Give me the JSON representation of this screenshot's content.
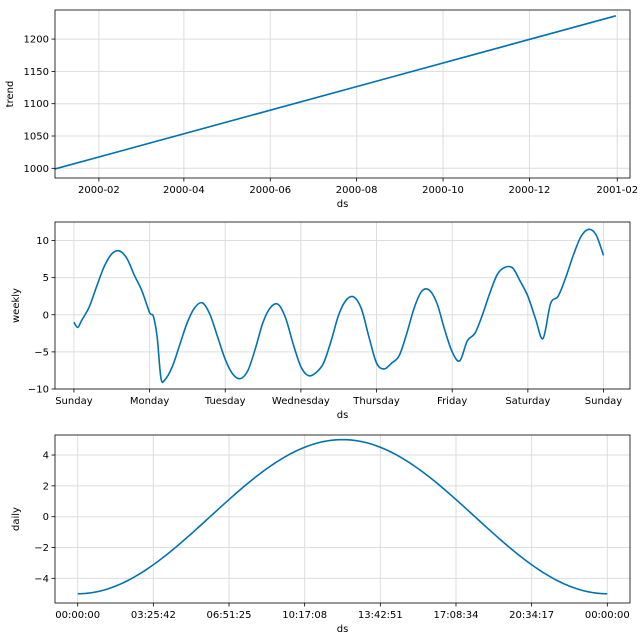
{
  "chart_data": [
    {
      "type": "line",
      "xlabel": "ds",
      "ylabel": "trend",
      "x_type": "date",
      "x_ticks": [
        "2000-02",
        "2000-04",
        "2000-06",
        "2000-08",
        "2000-10",
        "2000-12",
        "2001-02"
      ],
      "xlim": [
        "2000-01-01",
        "2001-02-10"
      ],
      "y_ticks": [
        1000,
        1050,
        1100,
        1150,
        1200
      ],
      "ylim": [
        985,
        1245
      ],
      "grid": true,
      "series": [
        {
          "x": [
            "2000-01-01",
            "2001-01-31"
          ],
          "values": [
            999,
            1236
          ]
        }
      ]
    },
    {
      "type": "line",
      "xlabel": "ds",
      "ylabel": "weekly",
      "x_ticks": [
        "Sunday",
        "Monday",
        "Tuesday",
        "Wednesday",
        "Thursday",
        "Friday",
        "Saturday",
        "Sunday"
      ],
      "xlim": [
        -0.25,
        7.35
      ],
      "y_ticks": [
        10,
        5,
        0,
        -5,
        -10
      ],
      "ylim": [
        -10,
        12.5
      ],
      "grid": true,
      "series": [
        {
          "x": [
            0,
            0.05,
            0.1,
            0.2,
            0.3,
            0.4,
            0.5,
            0.6,
            0.7,
            0.8,
            0.9,
            1.0,
            1.05,
            1.1,
            1.15,
            1.2,
            1.3,
            1.4,
            1.5,
            1.6,
            1.7,
            1.8,
            1.9,
            2.0,
            2.1,
            2.2,
            2.3,
            2.4,
            2.5,
            2.6,
            2.7,
            2.8,
            2.9,
            3.0,
            3.1,
            3.2,
            3.3,
            3.4,
            3.5,
            3.6,
            3.7,
            3.8,
            3.9,
            4.0,
            4.1,
            4.2,
            4.3,
            4.4,
            4.5,
            4.6,
            4.7,
            4.8,
            4.9,
            5.0,
            5.1,
            5.2,
            5.3,
            5.4,
            5.5,
            5.6,
            5.7,
            5.8,
            5.9,
            6.0,
            6.1,
            6.2,
            6.3,
            6.4,
            6.5,
            6.6,
            6.7,
            6.8,
            6.9,
            7.0
          ],
          "values": [
            -1.0,
            -1.7,
            -0.8,
            1.0,
            3.8,
            6.5,
            8.2,
            8.6,
            7.6,
            5.3,
            3.2,
            0.3,
            -0.2,
            -3.0,
            -8.5,
            -8.8,
            -7.0,
            -4.0,
            -1.0,
            1.0,
            1.6,
            0.0,
            -3.0,
            -6.0,
            -8.0,
            -8.6,
            -7.5,
            -4.5,
            -1.0,
            1.0,
            1.4,
            -0.5,
            -4.0,
            -7.0,
            -8.2,
            -7.8,
            -6.5,
            -3.5,
            0.0,
            2.0,
            2.4,
            0.8,
            -3.0,
            -6.5,
            -7.3,
            -6.5,
            -5.5,
            -2.5,
            1.0,
            3.2,
            3.3,
            1.5,
            -2.0,
            -5.0,
            -6.2,
            -3.5,
            -2.5,
            0.0,
            3.0,
            5.5,
            6.4,
            6.3,
            4.5,
            2.5,
            -0.5,
            -3.2,
            1.5,
            2.5,
            5.0,
            8.0,
            10.5,
            11.5,
            10.8,
            8.0
          ]
        }
      ]
    },
    {
      "type": "line",
      "xlabel": "ds",
      "ylabel": "daily",
      "x_ticks": [
        "00:00:00",
        "03:25:42",
        "06:51:25",
        "10:17:08",
        "13:42:51",
        "17:08:34",
        "20:34:17",
        "00:00:00"
      ],
      "xlim": [
        -0.3,
        7.3
      ],
      "y_ticks": [
        4,
        2,
        0,
        -2,
        -4
      ],
      "ylim": [
        -5.6,
        5.3
      ],
      "grid": true,
      "series": [
        {
          "shape": "sinusoid",
          "x_range": [
            0,
            7
          ],
          "amplitude": 5,
          "min_at": [
            0,
            7
          ],
          "max_at": 3.5
        }
      ]
    }
  ]
}
